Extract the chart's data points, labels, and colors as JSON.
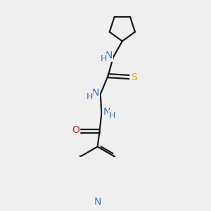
{
  "bg_color": "#efefef",
  "bond_color": "#1a1a1a",
  "bond_width": 1.6,
  "atom_colors": {
    "N": "#3377bb",
    "O": "#cc2222",
    "S": "#ccaa00",
    "H_N": "#3377bb",
    "C": "#1a1a1a"
  },
  "font_size": 10,
  "fig_size": [
    3.0,
    3.0
  ],
  "dpi": 100,
  "xlim": [
    -1.8,
    2.2
  ],
  "ylim": [
    -3.2,
    2.8
  ]
}
